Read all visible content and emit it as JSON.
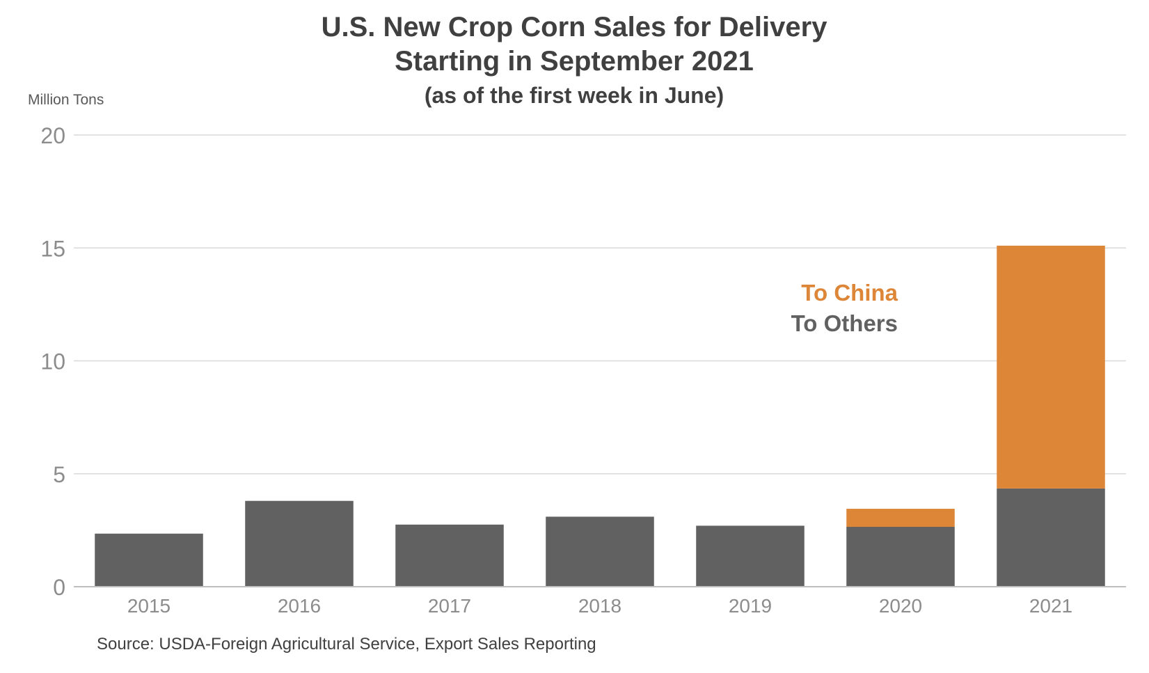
{
  "chart_data": {
    "type": "bar",
    "stacked": true,
    "title": "U.S. New Crop Corn Sales for Delivery",
    "title_line2": "Starting in September 2021",
    "subtitle": "(as of the first week in June)",
    "ylabel": "Million Tons",
    "ylim": [
      0,
      20
    ],
    "yticks": [
      "0",
      "5",
      "10",
      "15",
      "20"
    ],
    "categories": [
      "2015",
      "2016",
      "2017",
      "2018",
      "2019",
      "2020",
      "2021"
    ],
    "series": [
      {
        "name": "To Others",
        "color": "#616161",
        "values": [
          2.35,
          3.8,
          2.75,
          3.1,
          2.7,
          2.65,
          4.35
        ]
      },
      {
        "name": "To China",
        "color": "#dd8638",
        "values": [
          0,
          0,
          0,
          0,
          0,
          0.8,
          10.75
        ]
      }
    ],
    "legend_placement": "inside-right",
    "grid": true,
    "source": "Source: USDA-Foreign Agricultural Service, Export Sales Reporting"
  }
}
